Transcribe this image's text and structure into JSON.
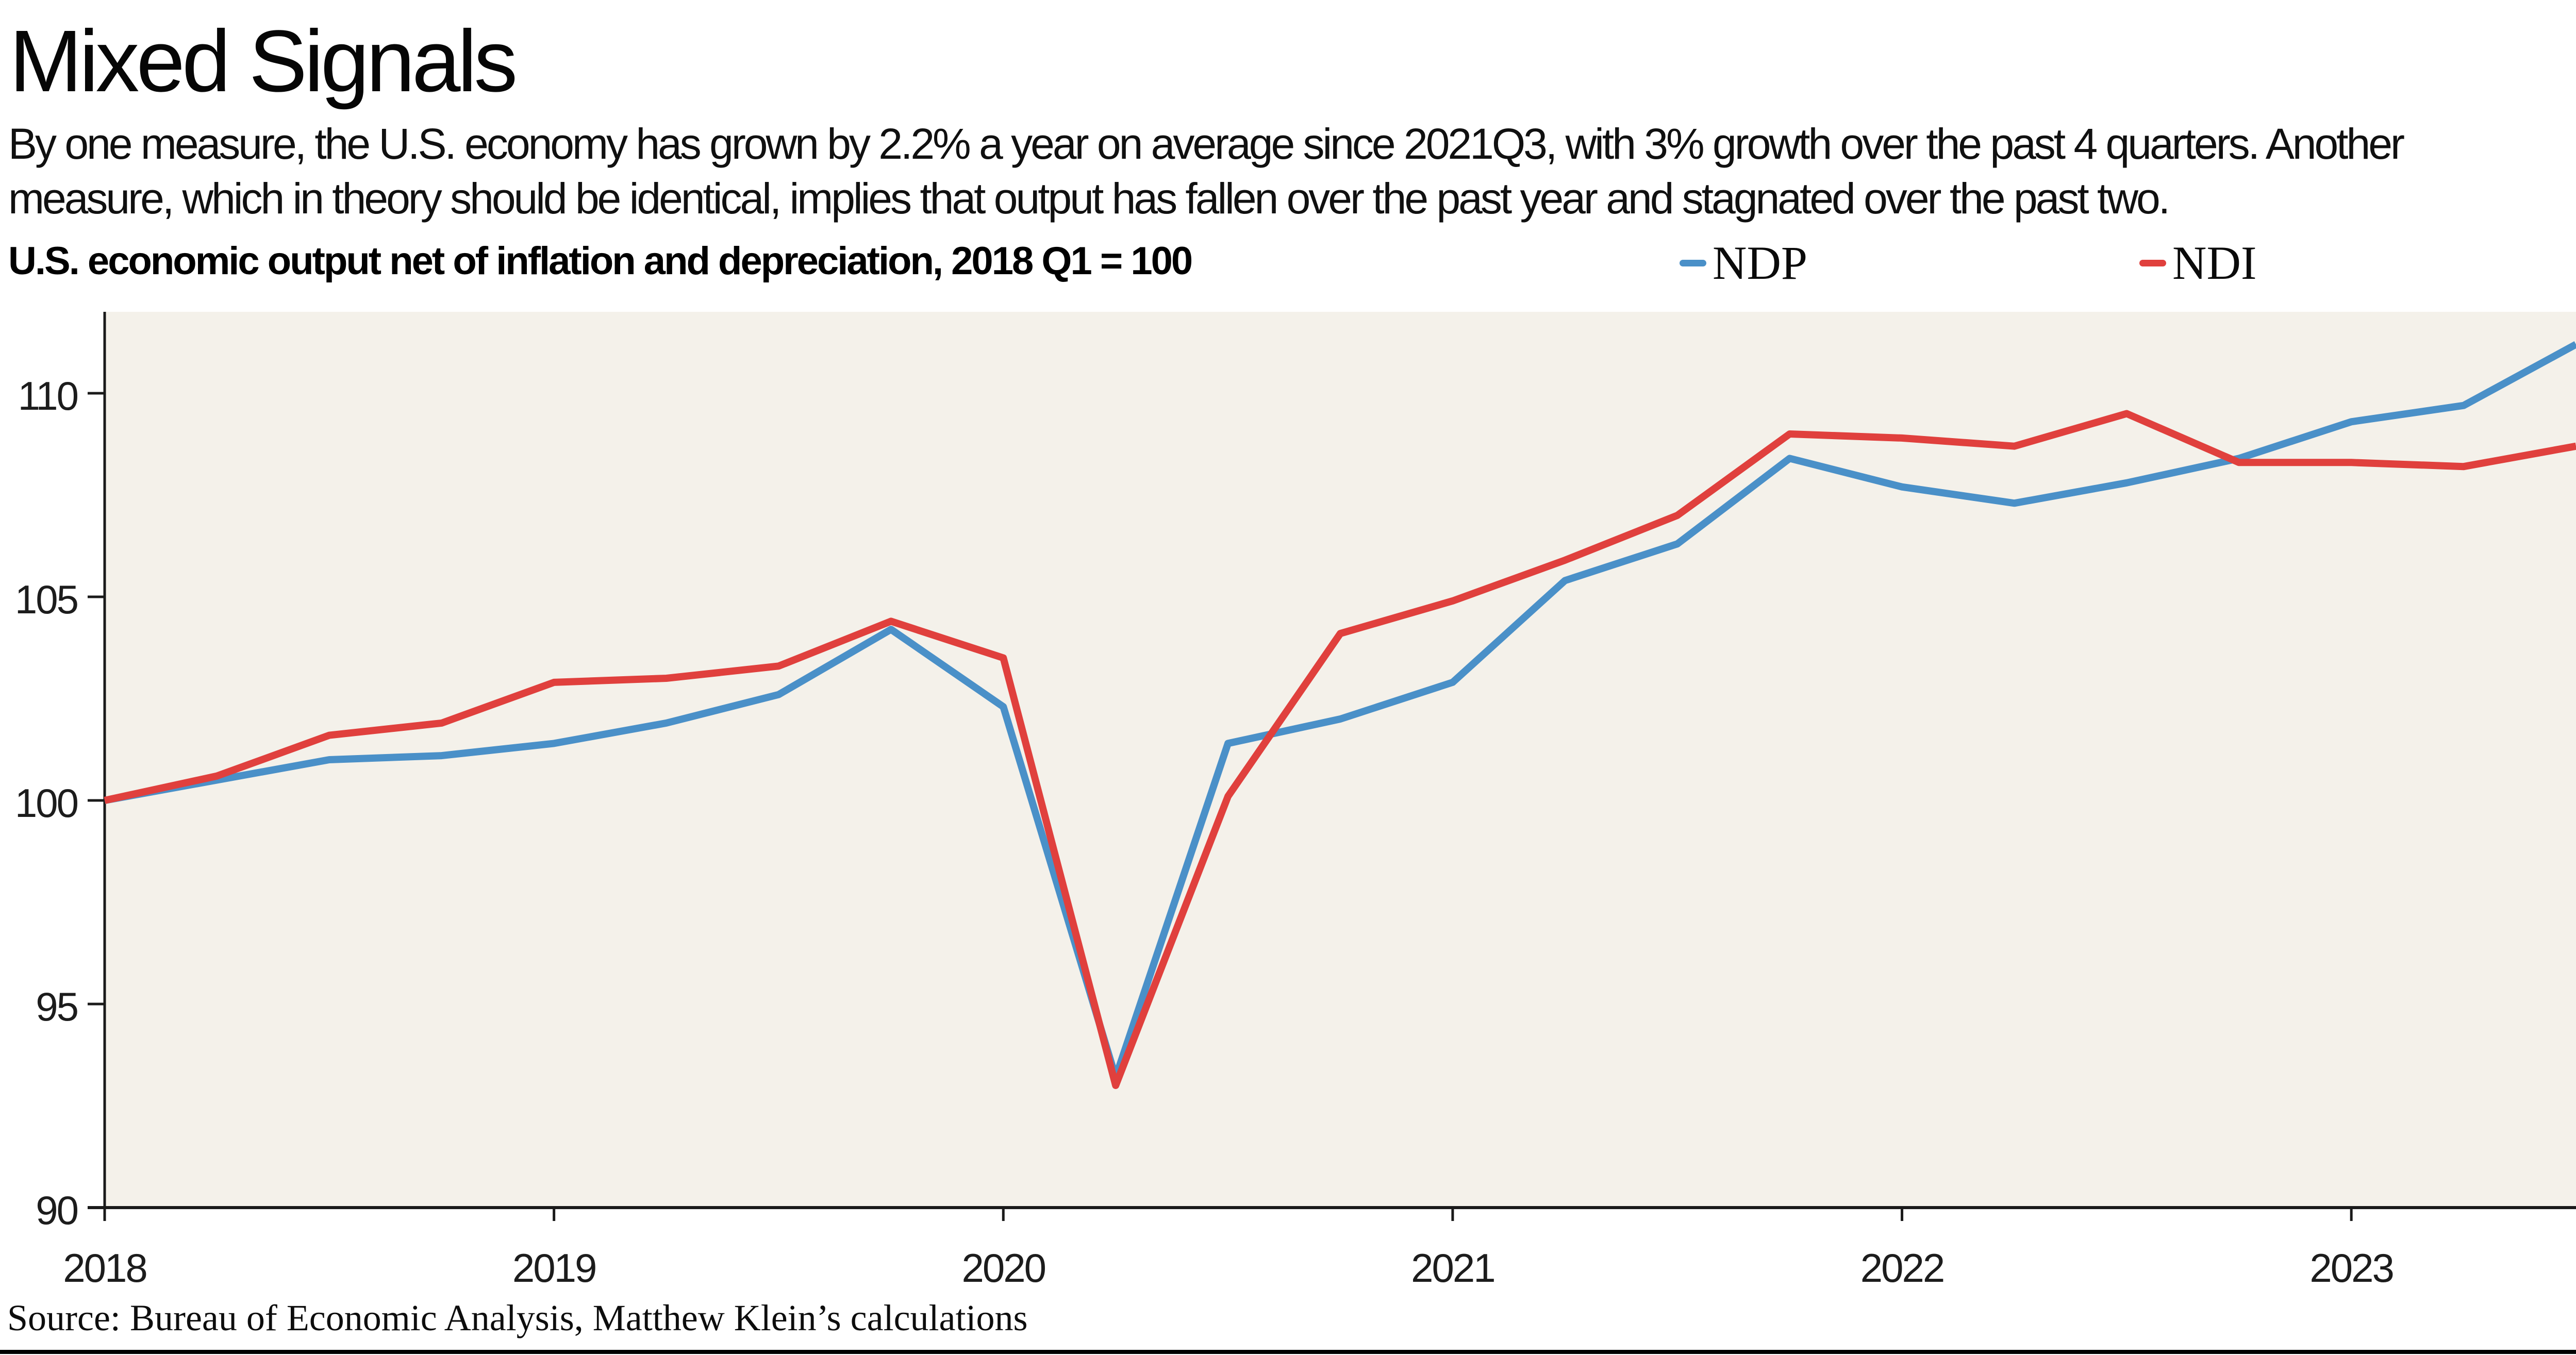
{
  "chart_data": {
    "type": "line",
    "title": "Mixed Signals",
    "subtitle_line1": "By one measure, the U.S. economy has grown by 2.2% a year on average since 2021Q3, with 3% growth over the past 4 quarters. Another",
    "subtitle_line2": "measure, which in theory should be identical, implies that output has fallen over the past year and stagnated over the past two.",
    "axis_label": "U.S. economic output net of inflation and depreciation, 2018 Q1 = 100",
    "source": "Source: Bureau of Economic Analysis, Matthew Klein’s calculations",
    "plot_bg_color": "#f4f1ea",
    "axis_color": "#1a1a1a",
    "grid": false,
    "legend_position": "top",
    "ylim": [
      90,
      112
    ],
    "y_ticks": [
      90,
      95,
      100,
      105,
      110
    ],
    "x_tick_labels": [
      "2018",
      "2019",
      "2020",
      "2021",
      "2022",
      "2023"
    ],
    "x_tick_quarter_index": [
      0,
      4,
      8,
      12,
      16,
      20
    ],
    "categories": [
      "2018Q1",
      "2018Q2",
      "2018Q3",
      "2018Q4",
      "2019Q1",
      "2019Q2",
      "2019Q3",
      "2019Q4",
      "2020Q1",
      "2020Q2",
      "2020Q3",
      "2020Q4",
      "2021Q1",
      "2021Q2",
      "2021Q3",
      "2021Q4",
      "2022Q1",
      "2022Q2",
      "2022Q3",
      "2022Q4",
      "2023Q1",
      "2023Q2",
      "2023Q3"
    ],
    "series": [
      {
        "name": "NDP",
        "color": "#4a90c8",
        "values": [
          100.0,
          100.5,
          101.0,
          101.1,
          101.4,
          101.9,
          102.6,
          104.2,
          102.3,
          93.2,
          101.4,
          102.0,
          102.9,
          105.4,
          106.3,
          108.4,
          107.7,
          107.3,
          107.8,
          108.4,
          109.3,
          109.7,
          111.2
        ]
      },
      {
        "name": "NDI",
        "color": "#e0403d",
        "values": [
          100.0,
          100.6,
          101.6,
          101.9,
          102.9,
          103.0,
          103.3,
          104.4,
          103.5,
          93.0,
          100.1,
          104.1,
          104.9,
          105.9,
          107.0,
          109.0,
          108.9,
          108.7,
          109.5,
          108.3,
          108.3,
          108.2,
          108.7
        ]
      }
    ]
  }
}
